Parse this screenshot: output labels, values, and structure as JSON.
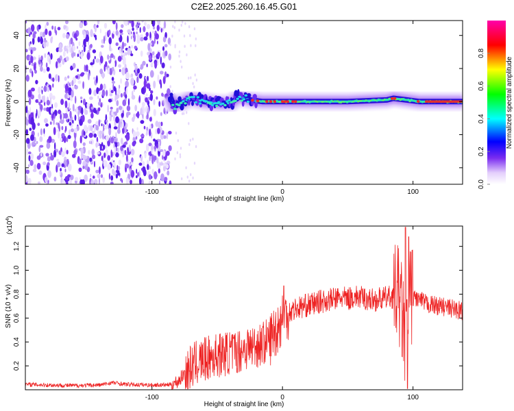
{
  "title": "C2E2.2025.260.16.45.G01",
  "chart_data": [
    {
      "type": "heatmap",
      "xlabel": "Height of straight line (km)",
      "ylabel": "Frequency (Hz)",
      "xlim": [
        -197,
        138
      ],
      "ylim": [
        -50,
        49
      ],
      "xticks": [
        -100,
        0,
        100
      ],
      "xtick_labels": [
        "-100",
        "0",
        "100"
      ],
      "yticks": [
        40,
        20,
        0,
        -20,
        -40
      ],
      "ytick_labels": [
        "40",
        "20",
        "0",
        "-20",
        "-40"
      ],
      "noise_region_x": [
        -197,
        -86
      ],
      "ridge": [
        {
          "x": -86,
          "y": 3
        },
        {
          "x": -83,
          "y": -3
        },
        {
          "x": -78,
          "y": -1
        },
        {
          "x": -70,
          "y": 2
        },
        {
          "x": -60,
          "y": 0
        },
        {
          "x": -50,
          "y": -1
        },
        {
          "x": -40,
          "y": -1
        },
        {
          "x": -33,
          "y": 3
        },
        {
          "x": -25,
          "y": 1
        },
        {
          "x": -15,
          "y": 0
        },
        {
          "x": 0,
          "y": 0
        },
        {
          "x": 20,
          "y": 0
        },
        {
          "x": 50,
          "y": 0
        },
        {
          "x": 80,
          "y": 1
        },
        {
          "x": 85,
          "y": 2
        },
        {
          "x": 95,
          "y": 1
        },
        {
          "x": 105,
          "y": 0
        },
        {
          "x": 120,
          "y": 0
        },
        {
          "x": 138,
          "y": 0
        }
      ],
      "colorbar": {
        "label": "Normalized spectral amplitude",
        "range": [
          0,
          1
        ],
        "ticks": [
          0.0,
          0.2,
          0.4,
          0.6,
          0.8
        ],
        "tick_labels": [
          "0.0",
          "0.2",
          "0.4",
          "0.6",
          "0.8"
        ],
        "colors": [
          "#ffffff",
          "#7a2cf0",
          "#0000ff",
          "#00ffff",
          "#00ff00",
          "#ffff00",
          "#ff0000",
          "#ff00aa"
        ]
      },
      "grid": false
    },
    {
      "type": "line",
      "xlabel": "Height of straight line (km)",
      "ylabel": "SNR (10 * v/v)",
      "scale_label": "(x10",
      "scale_exp": "4",
      "scale_close": ")",
      "xlim": [
        -197,
        138
      ],
      "ylim": [
        0,
        13700
      ],
      "xticks": [
        -100,
        0,
        100
      ],
      "xtick_labels": [
        "-100",
        "0",
        "100"
      ],
      "yticks": [
        2000,
        4000,
        6000,
        8000,
        10000,
        12000
      ],
      "ytick_labels": [
        "0.2",
        "0.4",
        "0.6",
        "0.8",
        "1.0",
        "1.2"
      ],
      "series": [
        {
          "color": "#ee2222",
          "x": [
            -197,
            -180,
            -160,
            -140,
            -130,
            -120,
            -100,
            -90,
            -85,
            -80,
            -75,
            -70,
            -65,
            -60,
            -55,
            -50,
            -45,
            -40,
            -35,
            -30,
            -25,
            -20,
            -15,
            -10,
            -5,
            0,
            5,
            10,
            20,
            30,
            40,
            45,
            50,
            55,
            60,
            65,
            70,
            75,
            80,
            85,
            88,
            90,
            92,
            94,
            96,
            98,
            100,
            105,
            110,
            115,
            120,
            125,
            130,
            138
          ],
          "y": [
            450,
            400,
            350,
            400,
            600,
            450,
            400,
            400,
            450,
            700,
            1400,
            1900,
            2300,
            2500,
            2700,
            2900,
            3000,
            3100,
            3200,
            3400,
            3600,
            3700,
            3900,
            4200,
            5000,
            6000,
            6500,
            6800,
            7100,
            7400,
            7600,
            7700,
            7600,
            7800,
            7700,
            7600,
            7500,
            7600,
            7700,
            7800,
            8200,
            7500,
            6000,
            4000,
            6500,
            8000,
            7800,
            7500,
            7200,
            7100,
            7000,
            6900,
            6800,
            6600
          ]
        }
      ],
      "grid": false
    }
  ]
}
